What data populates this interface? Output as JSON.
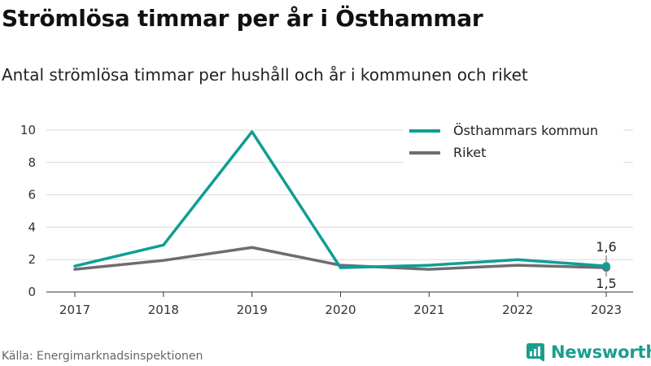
{
  "title": "Strömlösa timmar per år i Östhammar",
  "subtitle": "Antal strömlösa timmar per hushåll och år i kommunen och riket",
  "source": "Källa: Energimarknadsinspektionen",
  "brand": "Newsworthy",
  "colors": {
    "kommun": "#0f9e94",
    "riket": "#6e6c72",
    "brand": "#1a9e8f",
    "grid": "#d9d9d9"
  },
  "chart_data": {
    "type": "line",
    "x": [
      "2017",
      "2018",
      "2019",
      "2020",
      "2021",
      "2022",
      "2023"
    ],
    "ylim": [
      0,
      10
    ],
    "yticks": [
      "0",
      "2",
      "4",
      "6",
      "8",
      "10"
    ],
    "grid": true,
    "legend_position": "top-right",
    "series": [
      {
        "name": "Östhammars kommun",
        "values": [
          1.6,
          2.9,
          9.9,
          1.5,
          1.65,
          2.0,
          1.6
        ],
        "end_label": "1,6"
      },
      {
        "name": "Riket",
        "values": [
          1.4,
          1.95,
          2.75,
          1.65,
          1.4,
          1.65,
          1.5
        ],
        "end_label": "1,5"
      }
    ]
  }
}
